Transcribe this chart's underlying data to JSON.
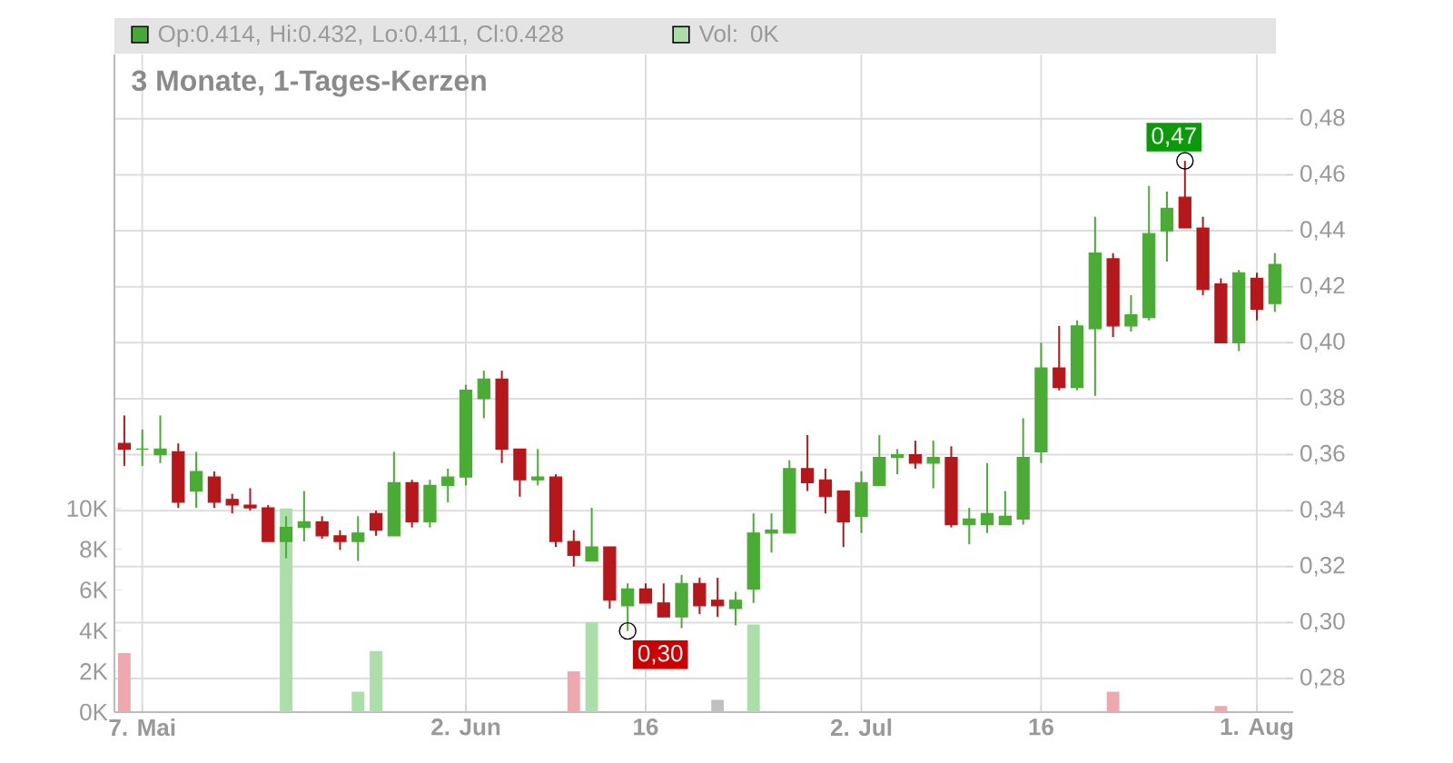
{
  "chart_data": {
    "type": "candlestick",
    "title": "3 Monate, 1-Tages-Kerzen",
    "categories": [
      null,
      "7. Mai",
      null,
      null,
      null,
      null,
      null,
      null,
      null,
      null,
      null,
      null,
      null,
      null,
      null,
      null,
      null,
      null,
      null,
      "2. Jun",
      null,
      null,
      null,
      null,
      null,
      null,
      null,
      null,
      null,
      "16",
      null,
      null,
      null,
      null,
      null,
      null,
      null,
      null,
      null,
      null,
      null,
      "2. Jul",
      null,
      null,
      null,
      null,
      null,
      null,
      null,
      null,
      null,
      "16",
      null,
      null,
      null,
      null,
      null,
      null,
      null,
      null,
      null,
      null,
      null,
      "1. Aug",
      null
    ],
    "ohlc": [
      [
        0.364,
        0.374,
        0.356,
        0.362
      ],
      [
        0.362,
        0.369,
        0.356,
        0.362
      ],
      [
        0.36,
        0.374,
        0.357,
        0.362
      ],
      [
        0.361,
        0.364,
        0.341,
        0.343
      ],
      [
        0.347,
        0.361,
        0.341,
        0.354
      ],
      [
        0.352,
        0.354,
        0.341,
        0.343
      ],
      [
        0.344,
        0.346,
        0.339,
        0.342
      ],
      [
        0.342,
        0.348,
        0.34,
        0.341
      ],
      [
        0.341,
        0.342,
        0.329,
        0.329
      ],
      [
        0.329,
        0.338,
        0.323,
        0.334
      ],
      [
        0.334,
        0.347,
        0.329,
        0.336
      ],
      [
        0.336,
        0.338,
        0.33,
        0.331
      ],
      [
        0.331,
        0.333,
        0.326,
        0.329
      ],
      [
        0.329,
        0.338,
        0.322,
        0.332
      ],
      [
        0.339,
        0.34,
        0.331,
        0.333
      ],
      [
        0.331,
        0.361,
        0.331,
        0.35
      ],
      [
        0.35,
        0.351,
        0.334,
        0.336
      ],
      [
        0.336,
        0.351,
        0.334,
        0.349
      ],
      [
        0.349,
        0.355,
        0.343,
        0.352
      ],
      [
        0.352,
        0.385,
        0.349,
        0.383
      ],
      [
        0.38,
        0.39,
        0.373,
        0.387
      ],
      [
        0.387,
        0.39,
        0.357,
        0.362
      ],
      [
        0.362,
        0.362,
        0.345,
        0.351
      ],
      [
        0.351,
        0.362,
        0.349,
        0.352
      ],
      [
        0.352,
        0.353,
        0.327,
        0.329
      ],
      [
        0.329,
        0.333,
        0.32,
        0.324
      ],
      [
        0.322,
        0.341,
        0.322,
        0.327
      ],
      [
        0.327,
        0.327,
        0.305,
        0.308
      ],
      [
        0.306,
        0.314,
        0.297,
        0.312
      ],
      [
        0.312,
        0.314,
        0.307,
        0.307
      ],
      [
        0.307,
        0.314,
        0.302,
        0.302
      ],
      [
        0.302,
        0.317,
        0.298,
        0.314
      ],
      [
        0.314,
        0.316,
        0.303,
        0.306
      ],
      [
        0.308,
        0.316,
        0.302,
        0.306
      ],
      [
        0.305,
        0.311,
        0.299,
        0.308
      ],
      [
        0.312,
        0.339,
        0.307,
        0.332
      ],
      [
        0.332,
        0.339,
        0.325,
        0.333
      ],
      [
        0.332,
        0.358,
        0.332,
        0.355
      ],
      [
        0.355,
        0.367,
        0.347,
        0.35
      ],
      [
        0.351,
        0.355,
        0.339,
        0.345
      ],
      [
        0.347,
        0.347,
        0.327,
        0.336
      ],
      [
        0.338,
        0.354,
        0.332,
        0.35
      ],
      [
        0.349,
        0.367,
        0.349,
        0.359
      ],
      [
        0.359,
        0.362,
        0.353,
        0.36
      ],
      [
        0.36,
        0.365,
        0.355,
        0.357
      ],
      [
        0.357,
        0.365,
        0.348,
        0.359
      ],
      [
        0.359,
        0.363,
        0.334,
        0.335
      ],
      [
        0.335,
        0.341,
        0.328,
        0.337
      ],
      [
        0.335,
        0.357,
        0.332,
        0.339
      ],
      [
        0.335,
        0.347,
        0.335,
        0.338
      ],
      [
        0.337,
        0.373,
        0.335,
        0.359
      ],
      [
        0.361,
        0.4,
        0.357,
        0.391
      ],
      [
        0.391,
        0.406,
        0.383,
        0.384
      ],
      [
        0.384,
        0.408,
        0.383,
        0.406
      ],
      [
        0.405,
        0.445,
        0.381,
        0.432
      ],
      [
        0.43,
        0.432,
        0.402,
        0.406
      ],
      [
        0.406,
        0.417,
        0.404,
        0.41
      ],
      [
        0.409,
        0.456,
        0.408,
        0.439
      ],
      [
        0.44,
        0.454,
        0.429,
        0.448
      ],
      [
        0.452,
        0.465,
        0.441,
        0.441
      ],
      [
        0.441,
        0.445,
        0.417,
        0.419
      ],
      [
        0.421,
        0.423,
        0.4,
        0.4
      ],
      [
        0.4,
        0.426,
        0.397,
        0.425
      ],
      [
        0.423,
        0.425,
        0.408,
        0.412
      ],
      [
        0.414,
        0.432,
        0.411,
        0.428
      ]
    ],
    "colors": [
      "#b5171b",
      "#4aab35",
      "#4aab35",
      "#b5171b",
      "#4aab35",
      "#b5171b",
      "#b5171b",
      "#b5171b",
      "#b5171b",
      "#4aab35",
      "#4aab35",
      "#b5171b",
      "#b5171b",
      "#4aab35",
      "#b5171b",
      "#4aab35",
      "#b5171b",
      "#4aab35",
      "#4aab35",
      "#4aab35",
      "#4aab35",
      "#b5171b",
      "#b5171b",
      "#4aab35",
      "#b5171b",
      "#b5171b",
      "#4aab35",
      "#b5171b",
      "#4aab35",
      "#b5171b",
      "#b5171b",
      "#4aab35",
      "#b5171b",
      "#b5171b",
      "#4aab35",
      "#4aab35",
      "#4aab35",
      "#4aab35",
      "#b5171b",
      "#b5171b",
      "#b5171b",
      "#4aab35",
      "#4aab35",
      "#4aab35",
      "#b5171b",
      "#4aab35",
      "#b5171b",
      "#4aab35",
      "#4aab35",
      "#4aab35",
      "#4aab35",
      "#4aab35",
      "#b5171b",
      "#4aab35",
      "#4aab35",
      "#b5171b",
      "#4aab35",
      "#4aab35",
      "#4aab35",
      "#b5171b",
      "#b5171b",
      "#b5171b",
      "#4aab35",
      "#b5171b",
      "#4aab35"
    ],
    "series": [
      {
        "type": "bar",
        "axis": "y2",
        "values": [
          2.9,
          null,
          null,
          null,
          null,
          null,
          null,
          null,
          null,
          10,
          null,
          null,
          null,
          1.0,
          3.0,
          null,
          null,
          null,
          null,
          null,
          null,
          null,
          null,
          null,
          null,
          2.0,
          4.4,
          null,
          null,
          null,
          null,
          null,
          null,
          0.6,
          null,
          4.3,
          null,
          null,
          null,
          null,
          null,
          null,
          null,
          null,
          null,
          null,
          null,
          null,
          null,
          null,
          null,
          null,
          null,
          null,
          null,
          1.0,
          null,
          null,
          null,
          null,
          null,
          0.3,
          null,
          null,
          null
        ],
        "colors": [
          "#f0a8b0",
          null,
          null,
          null,
          null,
          null,
          null,
          null,
          null,
          "#acdeaa",
          null,
          null,
          null,
          "#acdeaa",
          "#acdeaa",
          null,
          null,
          null,
          null,
          null,
          null,
          null,
          null,
          null,
          null,
          "#f0a8b0",
          "#acdeaa",
          null,
          null,
          null,
          null,
          null,
          null,
          "#c0c0c0",
          null,
          "#acdeaa",
          null,
          null,
          null,
          null,
          null,
          null,
          null,
          null,
          null,
          null,
          null,
          null,
          null,
          null,
          null,
          null,
          null,
          null,
          null,
          "#f0a8b0",
          null,
          null,
          null,
          null,
          null,
          "#f0a8b0",
          null,
          null,
          null
        ]
      }
    ],
    "ylim": [
      0.268,
      0.503
    ],
    "yticks": [
      {
        "value": 0.28,
        "label": "0,28"
      },
      {
        "value": 0.3,
        "label": "0,30"
      },
      {
        "value": 0.32,
        "label": "0,32"
      },
      {
        "value": 0.34,
        "label": "0,34"
      },
      {
        "value": 0.36,
        "label": "0,36"
      },
      {
        "value": 0.38,
        "label": "0,38"
      },
      {
        "value": 0.4,
        "label": "0,40"
      },
      {
        "value": 0.42,
        "label": "0,42"
      },
      {
        "value": 0.44,
        "label": "0,44"
      },
      {
        "value": 0.46,
        "label": "0,46"
      },
      {
        "value": 0.48,
        "label": "0,48"
      }
    ],
    "y2lim": [
      0,
      32.3
    ],
    "y2ticks": [
      {
        "value": 0,
        "label": "0K"
      },
      {
        "value": 2,
        "label": "2K"
      },
      {
        "value": 4,
        "label": "4K"
      },
      {
        "value": 6,
        "label": "6K"
      },
      {
        "value": 8,
        "label": "8K"
      },
      {
        "value": 10,
        "label": "10K"
      }
    ],
    "grid": true,
    "annotations": [
      "Op:0.414, Hi:0.432, Lo:0.411, Cl:0.428",
      "Vol: 0K",
      "0,47",
      "0,30"
    ]
  }
}
